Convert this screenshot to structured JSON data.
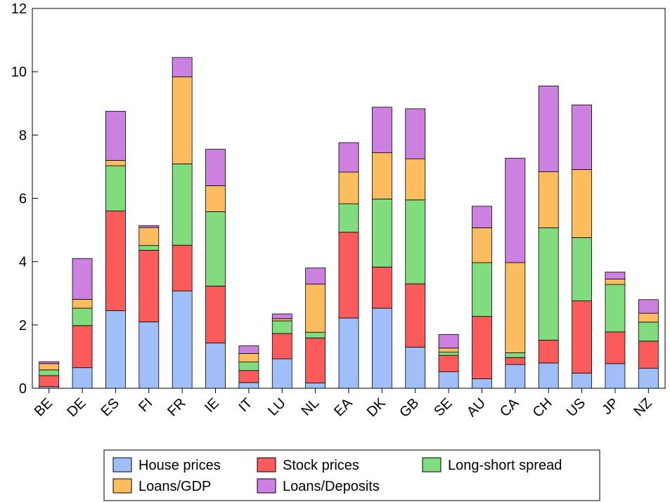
{
  "chart_data": {
    "type": "bar",
    "stacked": true,
    "title": "",
    "xlabel": "",
    "ylabel": "",
    "ylim": [
      0,
      12
    ],
    "yticks": [
      0,
      2,
      4,
      6,
      8,
      10,
      12
    ],
    "grid": false,
    "legend_position": "bottom",
    "categories": [
      "BE",
      "DE",
      "ES",
      "FI",
      "FR",
      "IE",
      "IT",
      "LU",
      "NL",
      "EA",
      "DK",
      "GB",
      "SE",
      "AU",
      "CA",
      "CH",
      "US",
      "JP",
      "NZ"
    ],
    "series": [
      {
        "name": "House prices",
        "color": "#a0bff8",
        "values": [
          0.05,
          0.65,
          2.45,
          2.1,
          3.07,
          1.43,
          0.18,
          0.93,
          0.17,
          2.22,
          2.53,
          1.3,
          0.52,
          0.3,
          0.75,
          0.8,
          0.48,
          0.78,
          0.63
        ]
      },
      {
        "name": "Stock prices",
        "color": "#fb5b5b",
        "values": [
          0.35,
          1.33,
          3.15,
          2.26,
          1.45,
          1.8,
          0.38,
          0.8,
          1.42,
          2.71,
          1.3,
          2.0,
          0.52,
          1.97,
          0.22,
          0.72,
          2.28,
          1.0,
          0.86
        ]
      },
      {
        "name": "Long-short spread",
        "color": "#80dc7c",
        "values": [
          0.18,
          0.55,
          1.43,
          0.15,
          2.57,
          2.35,
          0.27,
          0.4,
          0.18,
          0.9,
          2.15,
          2.65,
          0.1,
          1.7,
          0.15,
          3.55,
          2.0,
          1.5,
          0.6
        ]
      },
      {
        "name": "Loans/GDP",
        "color": "#fdbc5d",
        "values": [
          0.2,
          0.28,
          0.17,
          0.57,
          2.75,
          0.82,
          0.27,
          0.07,
          1.52,
          1.0,
          1.46,
          1.3,
          0.13,
          1.1,
          2.85,
          1.77,
          2.15,
          0.17,
          0.28
        ]
      },
      {
        "name": "Loans/Deposits",
        "color": "#cc80e0",
        "values": [
          0.06,
          1.29,
          1.55,
          0.06,
          0.61,
          1.15,
          0.24,
          0.15,
          0.51,
          0.93,
          1.44,
          1.58,
          0.43,
          0.68,
          3.3,
          2.71,
          2.04,
          0.22,
          0.43
        ]
      }
    ]
  }
}
